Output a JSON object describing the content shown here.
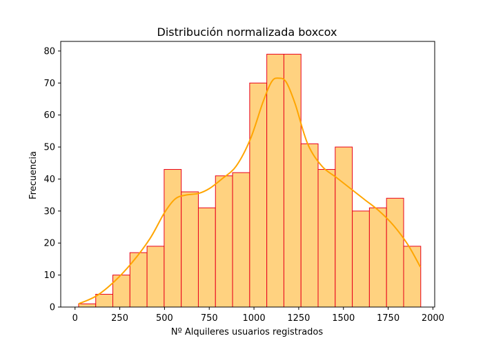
{
  "chart_data": {
    "type": "bar",
    "title": "Distribución normalizada boxcox",
    "xlabel": "Nº Alquileres usuarios registrados",
    "ylabel": "Frecuencia",
    "xlim": [
      -80,
      2010
    ],
    "ylim": [
      0,
      83
    ],
    "x_ticks": [
      0,
      250,
      500,
      750,
      1000,
      1250,
      1500,
      1750,
      2000
    ],
    "y_ticks": [
      0,
      10,
      20,
      30,
      40,
      50,
      60,
      70,
      80
    ],
    "bin_start": 20,
    "bin_width": 95.6,
    "values": [
      1,
      4,
      10,
      17,
      19,
      43,
      36,
      31,
      41,
      42,
      70,
      79,
      79,
      51,
      43,
      50,
      30,
      31,
      34,
      19
    ],
    "bar_fill": "#ffd280",
    "bar_edge": "#e8001a",
    "kde_color": "#ffa500",
    "kde_curve": {
      "x": [
        20,
        120,
        220,
        320,
        420,
        500,
        560,
        620,
        690,
        750,
        820,
        900,
        980,
        1050,
        1100,
        1140,
        1180,
        1230,
        1300,
        1380,
        1460,
        1540,
        1620,
        1700,
        1780,
        1860,
        1930
      ],
      "y": [
        1,
        3.5,
        8,
        14,
        21.5,
        29.5,
        33.8,
        35,
        35.5,
        37,
        40,
        44,
        52.5,
        64,
        70.5,
        71.5,
        70.3,
        63.5,
        51,
        44,
        40.5,
        37,
        33.5,
        30,
        25.5,
        19.5,
        12.5
      ]
    },
    "grid": false,
    "legend": "none"
  }
}
